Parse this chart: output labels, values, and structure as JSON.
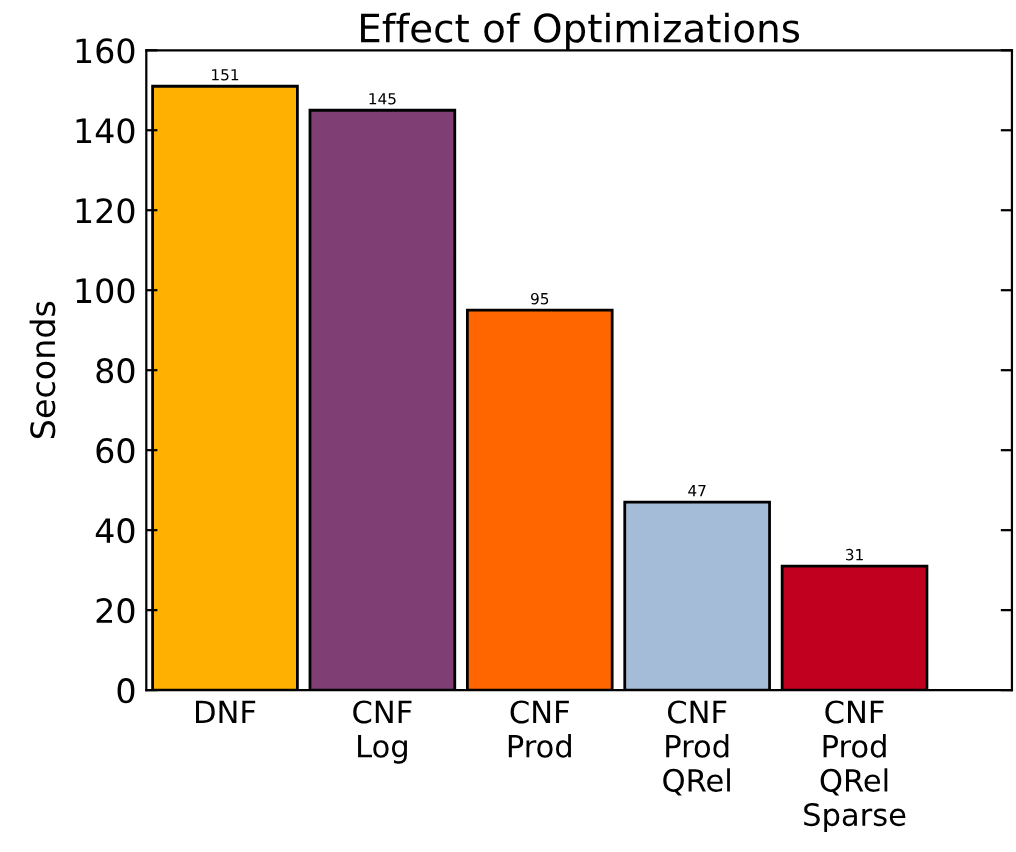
{
  "chart_data": {
    "type": "bar",
    "title": "Effect of Optimizations",
    "ylabel": "Seconds",
    "categories": [
      "DNF",
      "CNF\nLog",
      "CNF\nProd",
      "CNF\nProd\nQRel",
      "CNF\nProd\nQRel\nSparse"
    ],
    "values": [
      151,
      145,
      95,
      47,
      31
    ],
    "colors": [
      "#ffb000",
      "#7f3f74",
      "#ff6600",
      "#a5bcd9",
      "#c0001e"
    ],
    "ylim": [
      0,
      160
    ],
    "yticks": [
      0,
      20,
      40,
      60,
      80,
      100,
      120,
      140,
      160
    ],
    "data_labels": true,
    "grid": false,
    "legend": false
  }
}
